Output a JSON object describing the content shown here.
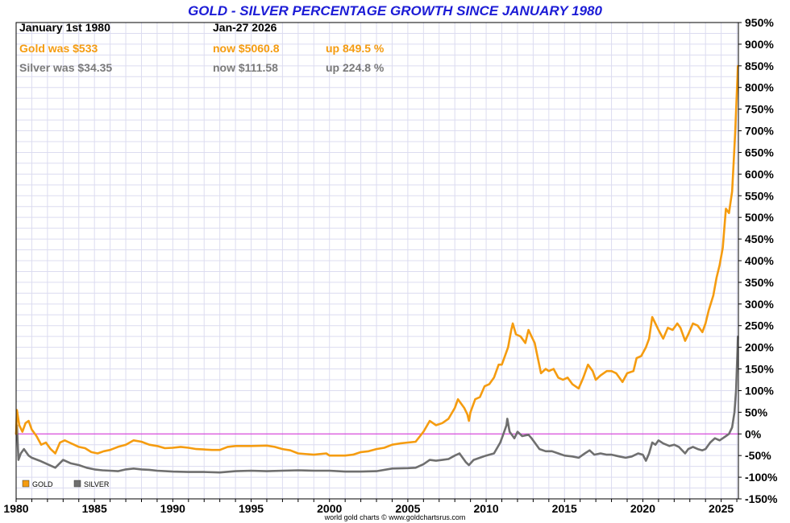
{
  "header": {
    "title": "GOLD - SILVER PERCENTAGE GROWTH SINCE JANUARY 1980",
    "start_label": "January 1st 1980",
    "end_label": "Jan-27  2026",
    "gold_was": "Gold was $533",
    "gold_now": "now $5060.8",
    "gold_up": "up 849.5 %",
    "silver_was": "Silver was $34.35",
    "silver_now": "now $111.58",
    "silver_up": "up 224.8 %"
  },
  "credit": "world gold charts © www.goldchartsrus.com",
  "colors": {
    "gold": "#f59c10",
    "silver": "#6f6f6f",
    "zero_line": "#d62ad6",
    "grid": "#dcdcf0",
    "title": "#1c1cd6"
  },
  "chart_data": {
    "type": "line",
    "title": "GOLD - SILVER PERCENTAGE GROWTH SINCE JANUARY 1980",
    "xlabel": "",
    "ylabel": "",
    "xlim": [
      1980,
      2026.1
    ],
    "ylim": [
      -150,
      950
    ],
    "y_axis_side": "right",
    "x_ticks": [
      1980,
      1985,
      1990,
      1995,
      2000,
      2005,
      2010,
      2015,
      2020,
      2025
    ],
    "y_ticks": [
      -150,
      -100,
      -50,
      0,
      50,
      100,
      150,
      200,
      250,
      300,
      350,
      400,
      450,
      500,
      550,
      600,
      650,
      700,
      750,
      800,
      850,
      900,
      950
    ],
    "y_tick_suffix": "%",
    "grid": true,
    "legend_position": "bottom-left",
    "reference_line": 0,
    "series": [
      {
        "name": "GOLD",
        "color": "#f59c10",
        "points": [
          [
            1980.0,
            0
          ],
          [
            1980.05,
            55
          ],
          [
            1980.2,
            20
          ],
          [
            1980.4,
            5
          ],
          [
            1980.6,
            25
          ],
          [
            1980.8,
            30
          ],
          [
            1981.0,
            10
          ],
          [
            1981.3,
            -5
          ],
          [
            1981.6,
            -25
          ],
          [
            1981.9,
            -20
          ],
          [
            1982.2,
            -35
          ],
          [
            1982.5,
            -45
          ],
          [
            1982.8,
            -20
          ],
          [
            1983.1,
            -15
          ],
          [
            1983.4,
            -20
          ],
          [
            1983.7,
            -25
          ],
          [
            1984.0,
            -30
          ],
          [
            1984.4,
            -33
          ],
          [
            1984.8,
            -42
          ],
          [
            1985.2,
            -45
          ],
          [
            1985.6,
            -40
          ],
          [
            1986.0,
            -37
          ],
          [
            1986.5,
            -30
          ],
          [
            1987.0,
            -25
          ],
          [
            1987.5,
            -15
          ],
          [
            1988.0,
            -18
          ],
          [
            1988.5,
            -25
          ],
          [
            1989.0,
            -28
          ],
          [
            1989.5,
            -33
          ],
          [
            1990.0,
            -32
          ],
          [
            1990.5,
            -30
          ],
          [
            1991.0,
            -32
          ],
          [
            1991.5,
            -35
          ],
          [
            1992.0,
            -36
          ],
          [
            1992.5,
            -37
          ],
          [
            1993.0,
            -37
          ],
          [
            1993.5,
            -30
          ],
          [
            1994.0,
            -28
          ],
          [
            1995.0,
            -28
          ],
          [
            1996.0,
            -27
          ],
          [
            1996.5,
            -30
          ],
          [
            1997.0,
            -35
          ],
          [
            1997.5,
            -38
          ],
          [
            1998.0,
            -45
          ],
          [
            1999.0,
            -48
          ],
          [
            1999.8,
            -45
          ],
          [
            2000.0,
            -50
          ],
          [
            2001.0,
            -50
          ],
          [
            2001.5,
            -48
          ],
          [
            2002.0,
            -42
          ],
          [
            2002.5,
            -40
          ],
          [
            2003.0,
            -35
          ],
          [
            2003.5,
            -32
          ],
          [
            2004.0,
            -25
          ],
          [
            2004.5,
            -22
          ],
          [
            2005.0,
            -20
          ],
          [
            2005.5,
            -18
          ],
          [
            2006.0,
            5
          ],
          [
            2006.4,
            30
          ],
          [
            2006.8,
            20
          ],
          [
            2007.2,
            25
          ],
          [
            2007.6,
            35
          ],
          [
            2008.0,
            60
          ],
          [
            2008.2,
            80
          ],
          [
            2008.6,
            60
          ],
          [
            2008.8,
            45
          ],
          [
            2008.9,
            30
          ],
          [
            2009.0,
            50
          ],
          [
            2009.3,
            80
          ],
          [
            2009.6,
            85
          ],
          [
            2009.9,
            110
          ],
          [
            2010.2,
            115
          ],
          [
            2010.5,
            130
          ],
          [
            2010.8,
            160
          ],
          [
            2011.0,
            160
          ],
          [
            2011.2,
            180
          ],
          [
            2011.4,
            200
          ],
          [
            2011.6,
            240
          ],
          [
            2011.7,
            255
          ],
          [
            2011.9,
            230
          ],
          [
            2012.2,
            225
          ],
          [
            2012.5,
            210
          ],
          [
            2012.7,
            240
          ],
          [
            2012.9,
            225
          ],
          [
            2013.1,
            210
          ],
          [
            2013.3,
            175
          ],
          [
            2013.5,
            140
          ],
          [
            2013.8,
            150
          ],
          [
            2014.0,
            145
          ],
          [
            2014.3,
            150
          ],
          [
            2014.6,
            130
          ],
          [
            2014.9,
            125
          ],
          [
            2015.2,
            130
          ],
          [
            2015.5,
            115
          ],
          [
            2015.9,
            105
          ],
          [
            2016.2,
            130
          ],
          [
            2016.5,
            160
          ],
          [
            2016.8,
            145
          ],
          [
            2017.0,
            125
          ],
          [
            2017.3,
            135
          ],
          [
            2017.7,
            145
          ],
          [
            2018.0,
            145
          ],
          [
            2018.3,
            140
          ],
          [
            2018.7,
            120
          ],
          [
            2019.0,
            140
          ],
          [
            2019.4,
            145
          ],
          [
            2019.6,
            175
          ],
          [
            2019.9,
            180
          ],
          [
            2020.2,
            200
          ],
          [
            2020.4,
            220
          ],
          [
            2020.6,
            270
          ],
          [
            2020.8,
            255
          ],
          [
            2021.0,
            240
          ],
          [
            2021.3,
            220
          ],
          [
            2021.6,
            245
          ],
          [
            2021.9,
            240
          ],
          [
            2022.2,
            255
          ],
          [
            2022.4,
            245
          ],
          [
            2022.7,
            215
          ],
          [
            2022.9,
            230
          ],
          [
            2023.2,
            255
          ],
          [
            2023.5,
            250
          ],
          [
            2023.8,
            235
          ],
          [
            2024.0,
            255
          ],
          [
            2024.2,
            285
          ],
          [
            2024.5,
            320
          ],
          [
            2024.7,
            360
          ],
          [
            2024.9,
            390
          ],
          [
            2025.1,
            430
          ],
          [
            2025.3,
            520
          ],
          [
            2025.5,
            510
          ],
          [
            2025.7,
            560
          ],
          [
            2025.8,
            630
          ],
          [
            2025.9,
            700
          ],
          [
            2026.0,
            790
          ],
          [
            2026.07,
            849.5
          ]
        ]
      },
      {
        "name": "SILVER",
        "color": "#6f6f6f",
        "points": [
          [
            1980.0,
            0
          ],
          [
            1980.05,
            20
          ],
          [
            1980.15,
            -60
          ],
          [
            1980.3,
            -45
          ],
          [
            1980.5,
            -35
          ],
          [
            1980.8,
            -50
          ],
          [
            1981.0,
            -55
          ],
          [
            1981.5,
            -62
          ],
          [
            1982.0,
            -70
          ],
          [
            1982.5,
            -78
          ],
          [
            1983.0,
            -60
          ],
          [
            1983.5,
            -68
          ],
          [
            1984.0,
            -72
          ],
          [
            1984.5,
            -78
          ],
          [
            1985.0,
            -82
          ],
          [
            1985.5,
            -84
          ],
          [
            1986.0,
            -85
          ],
          [
            1986.5,
            -86
          ],
          [
            1987.0,
            -82
          ],
          [
            1987.5,
            -80
          ],
          [
            1988.0,
            -82
          ],
          [
            1988.5,
            -83
          ],
          [
            1989.0,
            -85
          ],
          [
            1990.0,
            -87
          ],
          [
            1991.0,
            -88
          ],
          [
            1992.0,
            -88
          ],
          [
            1993.0,
            -89
          ],
          [
            1994.0,
            -86
          ],
          [
            1995.0,
            -85
          ],
          [
            1996.0,
            -86
          ],
          [
            1997.0,
            -85
          ],
          [
            1998.0,
            -84
          ],
          [
            1999.0,
            -85
          ],
          [
            2000.0,
            -85
          ],
          [
            2001.0,
            -87
          ],
          [
            2002.0,
            -87
          ],
          [
            2003.0,
            -86
          ],
          [
            2004.0,
            -80
          ],
          [
            2005.0,
            -79
          ],
          [
            2005.5,
            -78
          ],
          [
            2006.0,
            -70
          ],
          [
            2006.4,
            -60
          ],
          [
            2006.8,
            -62
          ],
          [
            2007.2,
            -60
          ],
          [
            2007.6,
            -58
          ],
          [
            2008.0,
            -50
          ],
          [
            2008.3,
            -45
          ],
          [
            2008.7,
            -65
          ],
          [
            2008.9,
            -72
          ],
          [
            2009.2,
            -60
          ],
          [
            2009.6,
            -55
          ],
          [
            2010.0,
            -50
          ],
          [
            2010.5,
            -45
          ],
          [
            2010.9,
            -20
          ],
          [
            2011.1,
            0
          ],
          [
            2011.3,
            20
          ],
          [
            2011.35,
            35
          ],
          [
            2011.5,
            5
          ],
          [
            2011.8,
            -10
          ],
          [
            2012.0,
            5
          ],
          [
            2012.3,
            -5
          ],
          [
            2012.7,
            -2
          ],
          [
            2012.9,
            -10
          ],
          [
            2013.1,
            -20
          ],
          [
            2013.4,
            -35
          ],
          [
            2013.8,
            -40
          ],
          [
            2014.2,
            -40
          ],
          [
            2014.6,
            -45
          ],
          [
            2015.0,
            -50
          ],
          [
            2015.5,
            -52
          ],
          [
            2015.9,
            -55
          ],
          [
            2016.3,
            -45
          ],
          [
            2016.6,
            -38
          ],
          [
            2016.9,
            -48
          ],
          [
            2017.3,
            -45
          ],
          [
            2017.7,
            -48
          ],
          [
            2018.0,
            -48
          ],
          [
            2018.5,
            -52
          ],
          [
            2018.9,
            -55
          ],
          [
            2019.3,
            -52
          ],
          [
            2019.7,
            -45
          ],
          [
            2020.0,
            -48
          ],
          [
            2020.2,
            -62
          ],
          [
            2020.4,
            -45
          ],
          [
            2020.6,
            -20
          ],
          [
            2020.8,
            -25
          ],
          [
            2021.0,
            -15
          ],
          [
            2021.3,
            -22
          ],
          [
            2021.7,
            -28
          ],
          [
            2022.0,
            -25
          ],
          [
            2022.3,
            -30
          ],
          [
            2022.7,
            -45
          ],
          [
            2022.9,
            -35
          ],
          [
            2023.2,
            -30
          ],
          [
            2023.5,
            -35
          ],
          [
            2023.8,
            -38
          ],
          [
            2024.0,
            -35
          ],
          [
            2024.3,
            -20
          ],
          [
            2024.6,
            -10
          ],
          [
            2024.9,
            -15
          ],
          [
            2025.1,
            -10
          ],
          [
            2025.3,
            -5
          ],
          [
            2025.5,
            0
          ],
          [
            2025.7,
            15
          ],
          [
            2025.85,
            50
          ],
          [
            2025.95,
            100
          ],
          [
            2026.03,
            180
          ],
          [
            2026.07,
            224.8
          ]
        ]
      }
    ]
  }
}
